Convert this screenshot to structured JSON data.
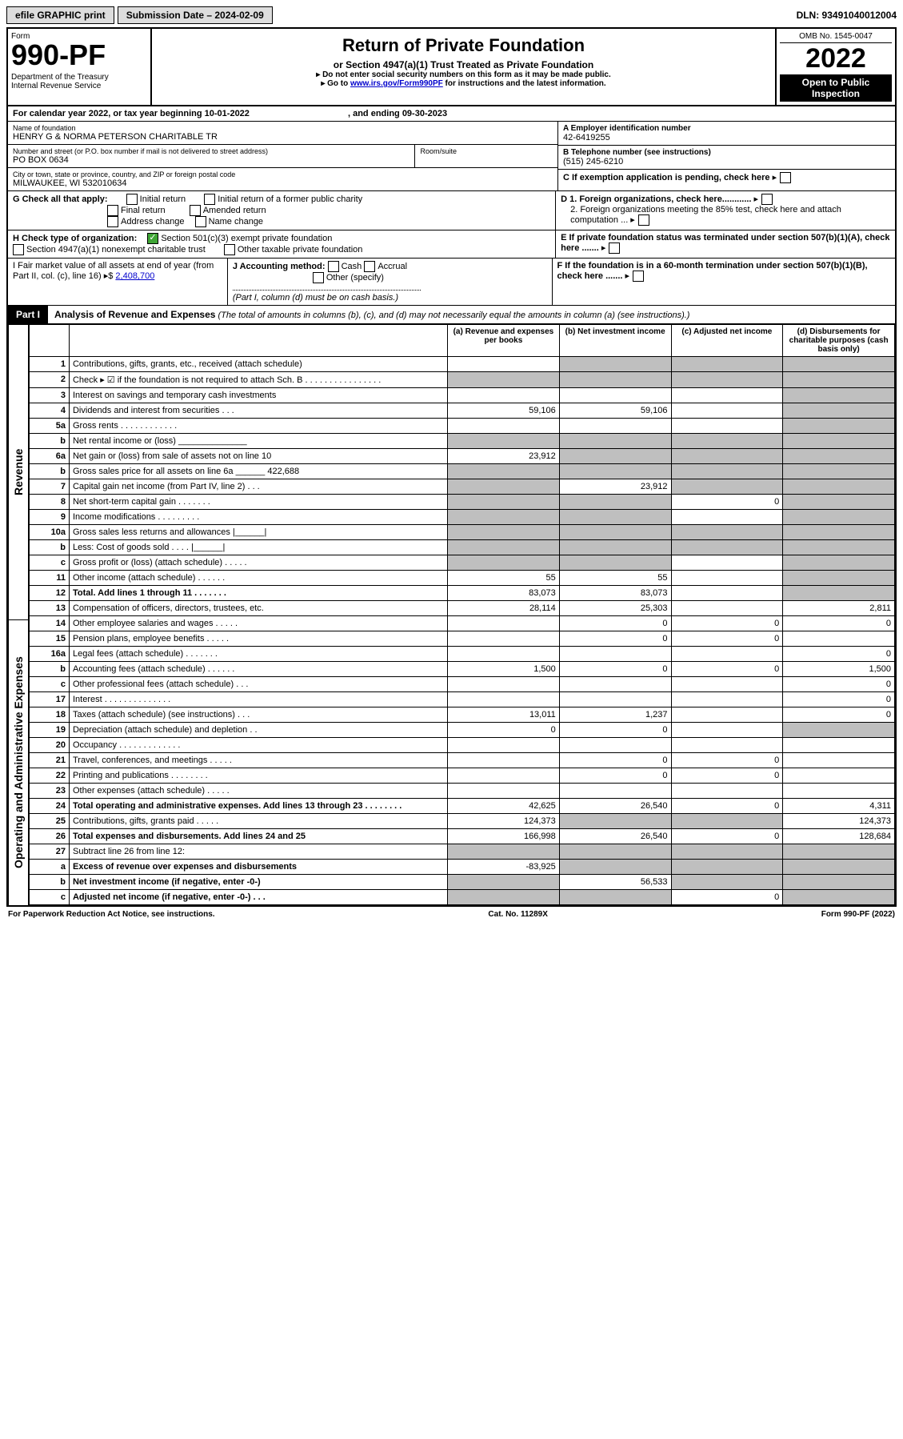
{
  "top": {
    "efile": "efile GRAPHIC print",
    "subdate_label": "Submission Date – 2024-02-09",
    "dln": "DLN: 93491040012004"
  },
  "header": {
    "form_word": "Form",
    "form_no": "990-PF",
    "dept": "Department of the Treasury\nInternal Revenue Service",
    "title": "Return of Private Foundation",
    "subtitle": "or Section 4947(a)(1) Trust Treated as Private Foundation",
    "note1": "▸ Do not enter social security numbers on this form as it may be made public.",
    "note2_pre": "▸ Go to ",
    "note2_link": "www.irs.gov/Form990PF",
    "note2_post": " for instructions and the latest information.",
    "omb": "OMB No. 1545-0047",
    "year": "2022",
    "open": "Open to Public Inspection"
  },
  "cal": {
    "line": "For calendar year 2022, or tax year beginning 10-01-2022",
    "end": ", and ending 09-30-2023"
  },
  "id": {
    "name_lab": "Name of foundation",
    "name": "HENRY G & NORMA PETERSON CHARITABLE TR",
    "ein_lab": "A Employer identification number",
    "ein": "42-6419255",
    "addr_lab": "Number and street (or P.O. box number if mail is not delivered to street address)",
    "addr": "PO BOX 0634",
    "room_lab": "Room/suite",
    "tel_lab": "B Telephone number (see instructions)",
    "tel": "(515) 245-6210",
    "city_lab": "City or town, state or province, country, and ZIP or foreign postal code",
    "city": "MILWAUKEE, WI  532010634",
    "c_lab": "C If exemption application is pending, check here"
  },
  "g": {
    "label": "G Check all that apply:",
    "o1": "Initial return",
    "o2": "Initial return of a former public charity",
    "o3": "Final return",
    "o4": "Amended return",
    "o5": "Address change",
    "o6": "Name change"
  },
  "d": {
    "d1": "D 1. Foreign organizations, check here............",
    "d2": "2. Foreign organizations meeting the 85% test, check here and attach computation ..."
  },
  "h": {
    "label": "H Check type of organization:",
    "o1": "Section 501(c)(3) exempt private foundation",
    "o2": "Section 4947(a)(1) nonexempt charitable trust",
    "o3": "Other taxable private foundation"
  },
  "e": "E  If private foundation status was terminated under section 507(b)(1)(A), check here .......",
  "i": {
    "label": "I Fair market value of all assets at end of year (from Part II, col. (c), line 16) ▸$",
    "val": "2,408,700"
  },
  "j": {
    "label": "J Accounting method:",
    "o1": "Cash",
    "o2": "Accrual",
    "o3": "Other (specify)",
    "note": "(Part I, column (d) must be on cash basis.)"
  },
  "f": "F  If the foundation is in a 60-month termination under section 507(b)(1)(B), check here .......",
  "part1": {
    "tag": "Part I",
    "title": "Analysis of Revenue and Expenses",
    "paren": " (The total of amounts in columns (b), (c), and (d) may not necessarily equal the amounts in column (a) (see instructions).)",
    "col_a": "(a)  Revenue and expenses per books",
    "col_b": "(b)  Net investment income",
    "col_c": "(c)  Adjusted net income",
    "col_d": "(d)  Disbursements for charitable purposes (cash basis only)"
  },
  "sidelabels": {
    "rev": "Revenue",
    "exp": "Operating and Administrative Expenses"
  },
  "rows": [
    {
      "n": "1",
      "l": "Contributions, gifts, grants, etc., received (attach schedule)",
      "a": "",
      "b": "g",
      "c": "g",
      "d": "g"
    },
    {
      "n": "2",
      "l": "Check ▸ ☑ if the foundation is not required to attach Sch. B  . . . . . . . . . . . . . . . .",
      "a": "g",
      "b": "g",
      "c": "g",
      "d": "g"
    },
    {
      "n": "3",
      "l": "Interest on savings and temporary cash investments",
      "a": "",
      "b": "",
      "c": "",
      "d": "g"
    },
    {
      "n": "4",
      "l": "Dividends and interest from securities  .  .  .",
      "a": "59,106",
      "b": "59,106",
      "c": "",
      "d": "g"
    },
    {
      "n": "5a",
      "l": "Gross rents  .  .  .  .  .  .  .  .  .  .  .  .",
      "a": "",
      "b": "",
      "c": "",
      "d": "g"
    },
    {
      "n": "b",
      "l": "Net rental income or (loss)  ______________",
      "a": "g",
      "b": "g",
      "c": "g",
      "d": "g"
    },
    {
      "n": "6a",
      "l": "Net gain or (loss) from sale of assets not on line 10",
      "a": "23,912",
      "b": "g",
      "c": "g",
      "d": "g"
    },
    {
      "n": "b",
      "l": "Gross sales price for all assets on line 6a ______ 422,688",
      "a": "g",
      "b": "g",
      "c": "g",
      "d": "g"
    },
    {
      "n": "7",
      "l": "Capital gain net income (from Part IV, line 2)  .  .  .",
      "a": "g",
      "b": "23,912",
      "c": "g",
      "d": "g"
    },
    {
      "n": "8",
      "l": "Net short-term capital gain  .  .  .  .  .  .  .",
      "a": "g",
      "b": "g",
      "c": "0",
      "d": "g"
    },
    {
      "n": "9",
      "l": "Income modifications  .  .  .  .  .  .  .  .  .",
      "a": "g",
      "b": "g",
      "c": "",
      "d": "g"
    },
    {
      "n": "10a",
      "l": "Gross sales less returns and allowances   |______|",
      "a": "g",
      "b": "g",
      "c": "g",
      "d": "g"
    },
    {
      "n": "b",
      "l": "Less: Cost of goods sold  .  .  .  .   |______|",
      "a": "g",
      "b": "g",
      "c": "g",
      "d": "g"
    },
    {
      "n": "c",
      "l": "Gross profit or (loss) (attach schedule)  .  .  .  .  .",
      "a": "g",
      "b": "g",
      "c": "",
      "d": "g"
    },
    {
      "n": "11",
      "l": "Other income (attach schedule)  .  .  .  .  .  .",
      "a": "55",
      "b": "55",
      "c": "",
      "d": "g"
    },
    {
      "n": "12",
      "l": "Total. Add lines 1 through 11  .  .  .  .  .  .  .",
      "a": "83,073",
      "b": "83,073",
      "c": "",
      "d": "g",
      "bold": true
    }
  ],
  "rows2": [
    {
      "n": "13",
      "l": "Compensation of officers, directors, trustees, etc.",
      "a": "28,114",
      "b": "25,303",
      "c": "",
      "d": "2,811"
    },
    {
      "n": "14",
      "l": "Other employee salaries and wages  .  .  .  .  .",
      "a": "",
      "b": "0",
      "c": "0",
      "d": "0"
    },
    {
      "n": "15",
      "l": "Pension plans, employee benefits  .  .  .  .  .",
      "a": "",
      "b": "0",
      "c": "0",
      "d": ""
    },
    {
      "n": "16a",
      "l": "Legal fees (attach schedule)  .  .  .  .  .  .  .",
      "a": "",
      "b": "",
      "c": "",
      "d": "0"
    },
    {
      "n": "b",
      "l": "Accounting fees (attach schedule)  .  .  .  .  .  .",
      "a": "1,500",
      "b": "0",
      "c": "0",
      "d": "1,500"
    },
    {
      "n": "c",
      "l": "Other professional fees (attach schedule)  .  .  .",
      "a": "",
      "b": "",
      "c": "",
      "d": "0"
    },
    {
      "n": "17",
      "l": "Interest  .  .  .  .  .  .  .  .  .  .  .  .  .  .",
      "a": "",
      "b": "",
      "c": "",
      "d": "0"
    },
    {
      "n": "18",
      "l": "Taxes (attach schedule) (see instructions)  .  .  .",
      "a": "13,011",
      "b": "1,237",
      "c": "",
      "d": "0"
    },
    {
      "n": "19",
      "l": "Depreciation (attach schedule) and depletion  .  .",
      "a": "0",
      "b": "0",
      "c": "",
      "d": "g"
    },
    {
      "n": "20",
      "l": "Occupancy  .  .  .  .  .  .  .  .  .  .  .  .  .",
      "a": "",
      "b": "",
      "c": "",
      "d": ""
    },
    {
      "n": "21",
      "l": "Travel, conferences, and meetings  .  .  .  .  .",
      "a": "",
      "b": "0",
      "c": "0",
      "d": ""
    },
    {
      "n": "22",
      "l": "Printing and publications  .  .  .  .  .  .  .  .",
      "a": "",
      "b": "0",
      "c": "0",
      "d": ""
    },
    {
      "n": "23",
      "l": "Other expenses (attach schedule)  .  .  .  .  .",
      "a": "",
      "b": "",
      "c": "",
      "d": ""
    },
    {
      "n": "24",
      "l": "Total operating and administrative expenses. Add lines 13 through 23  .  .  .  .  .  .  .  .",
      "a": "42,625",
      "b": "26,540",
      "c": "0",
      "d": "4,311",
      "bold": true
    },
    {
      "n": "25",
      "l": "Contributions, gifts, grants paid  .  .  .  .  .",
      "a": "124,373",
      "b": "g",
      "c": "g",
      "d": "124,373"
    },
    {
      "n": "26",
      "l": "Total expenses and disbursements. Add lines 24 and 25",
      "a": "166,998",
      "b": "26,540",
      "c": "0",
      "d": "128,684",
      "bold": true
    }
  ],
  "rows3": [
    {
      "n": "27",
      "l": "Subtract line 26 from line 12:",
      "a": "g",
      "b": "g",
      "c": "g",
      "d": "g"
    },
    {
      "n": "a",
      "l": "Excess of revenue over expenses and disbursements",
      "a": "-83,925",
      "b": "g",
      "c": "g",
      "d": "g",
      "bold": true
    },
    {
      "n": "b",
      "l": "Net investment income (if negative, enter -0-)",
      "a": "g",
      "b": "56,533",
      "c": "g",
      "d": "g",
      "bold": true
    },
    {
      "n": "c",
      "l": "Adjusted net income (if negative, enter -0-)  .  .  .",
      "a": "g",
      "b": "g",
      "c": "0",
      "d": "g",
      "bold": true
    }
  ],
  "footer": {
    "l": "For Paperwork Reduction Act Notice, see instructions.",
    "c": "Cat. No. 11289X",
    "r": "Form 990-PF (2022)"
  }
}
